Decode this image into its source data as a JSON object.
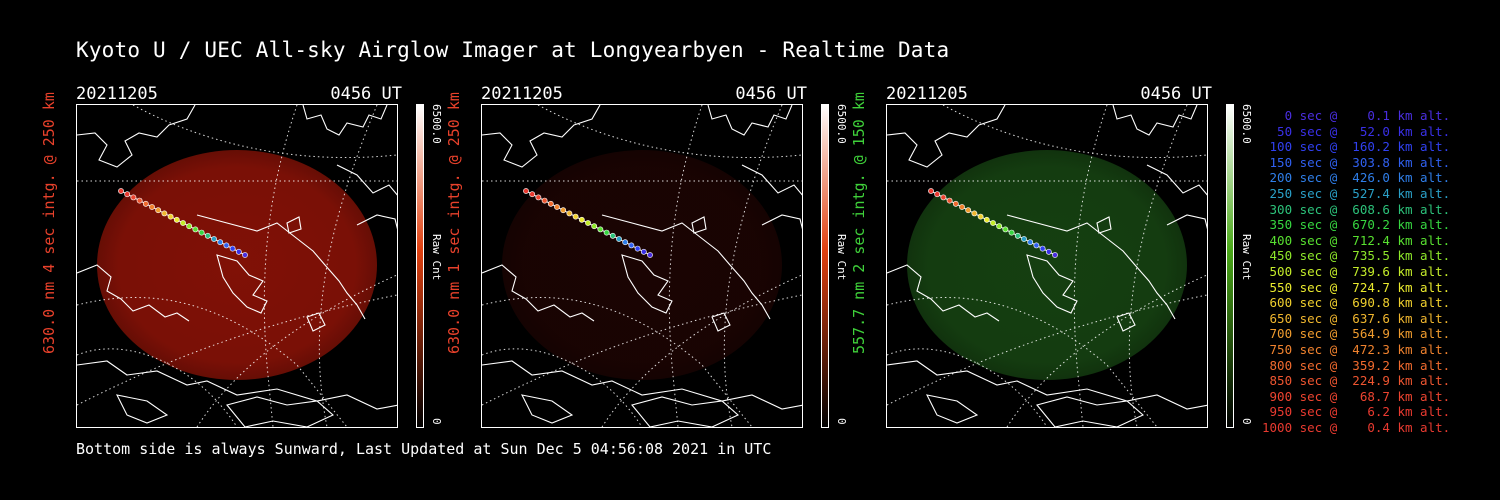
{
  "title": "Kyoto U / UEC All-sky Airglow Imager at Longyearbyen - Realtime Data",
  "footer": "Bottom side is always Sunward, Last Updated at Sun Dec  5 04:56:08 2021 in UTC",
  "panels": [
    {
      "date": "20211205",
      "time": "0456 UT",
      "side_label": "630.0 nm 4 sec intg. @ 250 km",
      "side_color": "#e8412b",
      "colorbar_max": "6500.0",
      "colorbar_min": "0",
      "colorbar_unit": "Raw Cnt",
      "colorbar_color": "#e04010",
      "glow": "#a01508",
      "glow_level": 0.8
    },
    {
      "date": "20211205",
      "time": "0456 UT",
      "side_label": "630.0 nm 1 sec intg. @ 250 km",
      "side_color": "#e8412b",
      "colorbar_max": "6500.0",
      "colorbar_min": "0",
      "colorbar_unit": "Raw Cnt",
      "colorbar_color": "#e04010",
      "glow": "#3a0806",
      "glow_level": 0.45
    },
    {
      "date": "20211205",
      "time": "0456 UT",
      "side_label": "557.7 nm 2 sec intg. @ 150 km",
      "side_color": "#3fd13a",
      "colorbar_max": "6500.0",
      "colorbar_min": "0",
      "colorbar_unit": "Raw Cnt",
      "colorbar_color": "#4aa818",
      "glow": "#1e5a18",
      "glow_level": 0.7
    }
  ],
  "legend": [
    {
      "text": "   0 sec @    0.1 km alt.",
      "color": "#4a2ee0"
    },
    {
      "text": "  50 sec @   52.0 km alt.",
      "color": "#3a30e8"
    },
    {
      "text": " 100 sec @  160.2 km alt.",
      "color": "#3040f0"
    },
    {
      "text": " 150 sec @  303.8 km alt.",
      "color": "#3060f0"
    },
    {
      "text": " 200 sec @  426.0 km alt.",
      "color": "#2f7ee8"
    },
    {
      "text": " 250 sec @  527.4 km alt.",
      "color": "#2aa0c8"
    },
    {
      "text": " 300 sec @  608.6 km alt.",
      "color": "#2cc27a"
    },
    {
      "text": " 350 sec @  670.2 km alt.",
      "color": "#36d640"
    },
    {
      "text": " 400 sec @  712.4 km alt.",
      "color": "#58e030"
    },
    {
      "text": " 450 sec @  735.5 km alt.",
      "color": "#8ee82a"
    },
    {
      "text": " 500 sec @  739.6 km alt.",
      "color": "#c4ec2a"
    },
    {
      "text": " 550 sec @  724.7 km alt.",
      "color": "#eaea2e"
    },
    {
      "text": " 600 sec @  690.8 km alt.",
      "color": "#f0d02e"
    },
    {
      "text": " 650 sec @  637.6 km alt.",
      "color": "#f0b62e"
    },
    {
      "text": " 700 sec @  564.9 km alt.",
      "color": "#f09c2e"
    },
    {
      "text": " 750 sec @  472.3 km alt.",
      "color": "#f0822e"
    },
    {
      "text": " 800 sec @  359.2 km alt.",
      "color": "#f06a2e"
    },
    {
      "text": " 850 sec @  224.9 km alt.",
      "color": "#ee5530"
    },
    {
      "text": " 900 sec @   68.7 km alt.",
      "color": "#ec4430"
    },
    {
      "text": " 950 sec @    6.2 km alt.",
      "color": "#ea3a30"
    },
    {
      "text": "1000 sec @    0.4 km alt.",
      "color": "#e83a30"
    }
  ]
}
